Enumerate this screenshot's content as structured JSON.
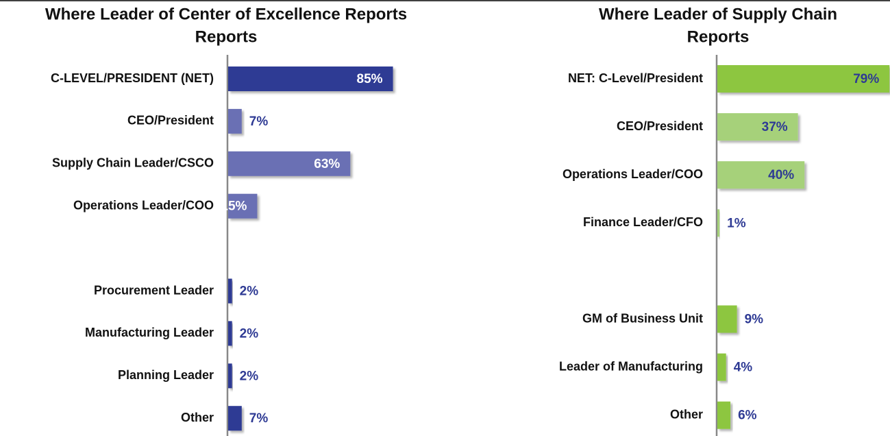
{
  "chart_data": [
    {
      "type": "bar",
      "orientation": "horizontal",
      "title": [
        "Where Leader of Center of Excellence Reports",
        "Reports"
      ],
      "categories": [
        "C-LEVEL/PRESIDENT (NET)",
        "CEO/President",
        "Supply Chain Leader/CSCO",
        "Operations Leader/COO",
        null,
        "Procurement Leader",
        "Manufacturing Leader",
        "Planning Leader",
        "Other"
      ],
      "values": [
        85,
        7,
        63,
        15,
        null,
        2,
        2,
        2,
        7
      ],
      "value_labels": [
        "85%",
        "7%",
        "63%",
        "15%",
        null,
        "2%",
        "2%",
        "2%",
        "7%"
      ],
      "colors": [
        "#2e3a94",
        "#6a70b4",
        "#6a70b4",
        "#6a70b4",
        null,
        "#2e3a94",
        "#2e3a94",
        "#2e3a94",
        "#2e3a94"
      ]
    },
    {
      "type": "bar",
      "orientation": "horizontal",
      "title": [
        "Where Leader of Supply Chain",
        "Reports"
      ],
      "categories": [
        "NET: C-Level/President",
        "CEO/President",
        "Operations Leader/COO",
        "Finance Leader/CFO",
        null,
        "GM of Business Unit",
        "Leader of Manufacturing",
        "Other"
      ],
      "values": [
        79,
        37,
        40,
        1,
        null,
        9,
        4,
        6
      ],
      "value_labels": [
        "79%",
        "37%",
        "40%",
        "1%",
        null,
        "9%",
        "4%",
        "6%"
      ],
      "colors": [
        "#8dc63f",
        "#a6d17a",
        "#a6d17a",
        "#a6d17a",
        null,
        "#8dc63f",
        "#8dc63f",
        "#8dc63f"
      ]
    }
  ]
}
